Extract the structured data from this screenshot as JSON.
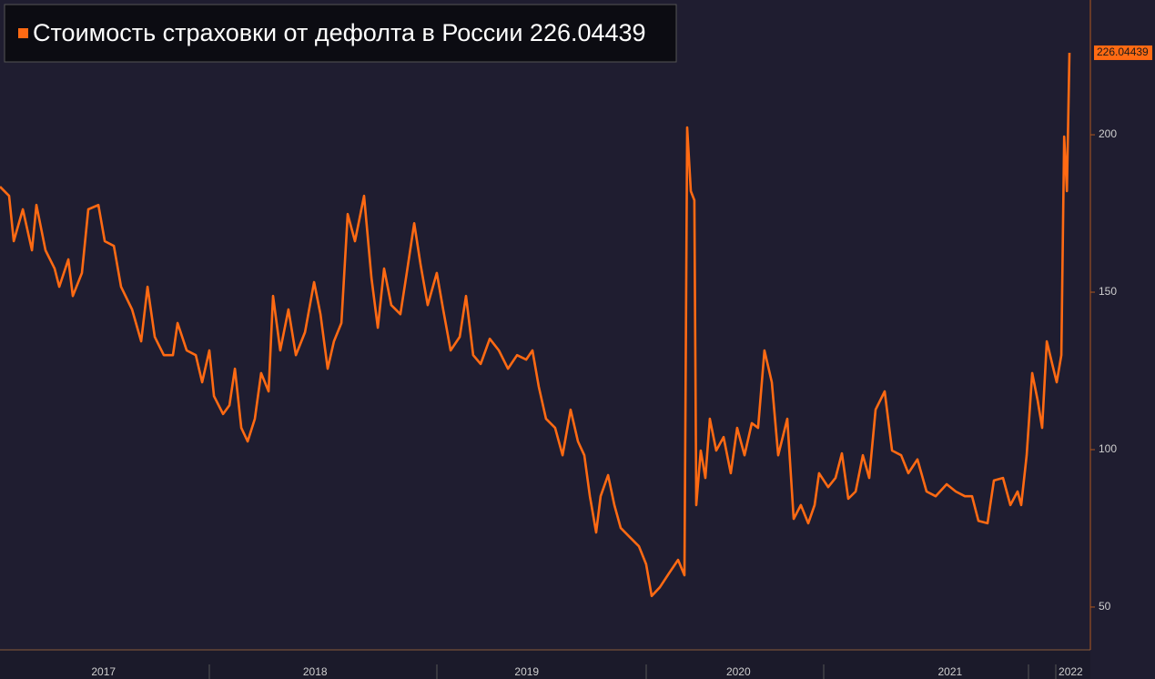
{
  "chart_data": {
    "type": "line",
    "x": [
      2017.011,
      2017.054,
      2017.076,
      2017.119,
      2017.162,
      2017.183,
      2017.226,
      2017.269,
      2017.291,
      2017.334,
      2017.355,
      2017.398,
      2017.428,
      2017.476,
      2017.506,
      2017.549,
      2017.583,
      2017.635,
      2017.678,
      2017.708,
      2017.742,
      2017.785,
      2017.828,
      2017.85,
      2017.893,
      2017.936,
      2017.966,
      2018.0,
      2018.022,
      2018.065,
      2018.095,
      2018.121,
      2018.151,
      2018.181,
      2018.215,
      2018.245,
      2018.28,
      2018.301,
      2018.335,
      2018.374,
      2018.409,
      2018.452,
      2018.495,
      2018.525,
      2018.559,
      2018.589,
      2018.624,
      2018.654,
      2018.688,
      2018.731,
      2018.766,
      2018.796,
      2018.826,
      2018.86,
      2018.903,
      2018.933,
      2018.968,
      2018.998,
      2019.032,
      2019.075,
      2019.105,
      2019.14,
      2019.183,
      2019.213,
      2019.247,
      2019.282,
      2019.325,
      2019.368,
      2019.411,
      2019.454,
      2019.497,
      2019.527,
      2019.557,
      2019.591,
      2019.634,
      2019.669,
      2019.707,
      2019.742,
      2019.772,
      2019.798,
      2019.828,
      2019.849,
      2019.884,
      2019.914,
      2019.944,
      2019.987,
      2020.03,
      2020.064,
      2020.09,
      2020.129,
      2020.172,
      2020.215,
      2020.245,
      2020.258,
      2020.275,
      2020.292,
      2020.301,
      2020.322,
      2020.344,
      2020.365,
      2020.395,
      2020.43,
      2020.464,
      2020.494,
      2020.529,
      2020.563,
      2020.593,
      2020.623,
      2020.658,
      2020.688,
      2020.731,
      2020.761,
      2020.795,
      2020.83,
      2020.86,
      2020.881,
      2020.924,
      2020.959,
      2020.989,
      2021.019,
      2021.054,
      2021.088,
      2021.118,
      2021.148,
      2021.191,
      2021.226,
      2021.269,
      2021.303,
      2021.346,
      2021.389,
      2021.432,
      2021.484,
      2021.527,
      2021.57,
      2021.604,
      2021.634,
      2021.677,
      2021.707,
      2021.75,
      2021.785,
      2021.819,
      2021.836,
      2021.862,
      2021.888,
      2021.914,
      2021.935,
      2021.957,
      2021.983,
      2022.004,
      2022.026,
      2022.039,
      2022.052,
      2022.064
    ],
    "series": [
      {
        "name": "Стоимость страховки от дефолта в России",
        "color": "#ff6a13",
        "values": [
          183.5,
          180.6,
          166.2,
          176.3,
          163.3,
          177.7,
          163.3,
          157.5,
          151.7,
          160.4,
          148.8,
          156.1,
          176.3,
          177.7,
          166.2,
          164.7,
          151.7,
          144.5,
          134.4,
          151.7,
          135.8,
          130.0,
          130.0,
          140.2,
          131.5,
          130.0,
          121.4,
          131.5,
          117.0,
          111.3,
          114.1,
          125.7,
          106.9,
          102.6,
          109.8,
          124.3,
          118.5,
          148.8,
          131.5,
          144.5,
          130.0,
          137.3,
          153.2,
          143.0,
          125.7,
          134.4,
          140.2,
          174.8,
          166.2,
          180.6,
          154.6,
          138.7,
          157.5,
          145.9,
          143.0,
          156.1,
          171.9,
          158.9,
          145.9,
          156.1,
          144.5,
          131.5,
          135.8,
          148.8,
          130.0,
          127.2,
          135.2,
          131.5,
          125.7,
          130.0,
          128.6,
          131.5,
          119.9,
          109.8,
          106.9,
          98.2,
          112.7,
          102.6,
          98.2,
          85.2,
          73.7,
          85.2,
          91.9,
          82.4,
          75.1,
          72.2,
          69.3,
          63.6,
          53.5,
          56.3,
          60.7,
          65.0,
          60.1,
          202.3,
          182.1,
          179.2,
          82.4,
          99.7,
          91.0,
          109.8,
          99.7,
          104.0,
          92.5,
          106.9,
          98.2,
          108.4,
          106.9,
          131.5,
          121.4,
          98.2,
          109.8,
          78.0,
          82.4,
          76.6,
          82.4,
          92.5,
          88.1,
          91.0,
          98.8,
          84.4,
          86.7,
          98.2,
          91.0,
          112.7,
          118.5,
          99.7,
          98.2,
          92.5,
          96.9,
          86.7,
          85.2,
          89.0,
          86.7,
          85.2,
          85.2,
          77.4,
          76.6,
          90.2,
          91.0,
          82.4,
          86.7,
          82.4,
          98.2,
          124.3,
          115.6,
          106.9,
          134.4,
          127.2,
          121.4,
          130.0,
          199.4,
          182.1,
          226.04439
        ]
      }
    ],
    "xlim": [
      2017.011,
      2022.163
    ],
    "xticks": [
      {
        "value": 2017.5,
        "label": "2017"
      },
      {
        "value": 2018.5,
        "label": "2018"
      },
      {
        "value": 2019.5,
        "label": "2019"
      },
      {
        "value": 2020.5,
        "label": "2020"
      },
      {
        "value": 2021.5,
        "label": "2021"
      },
      {
        "value": 2022.07,
        "label": "2022"
      }
    ],
    "ylim": [
      36.4,
      242.8
    ],
    "yticks": [
      50,
      100,
      150,
      200
    ]
  }
}
